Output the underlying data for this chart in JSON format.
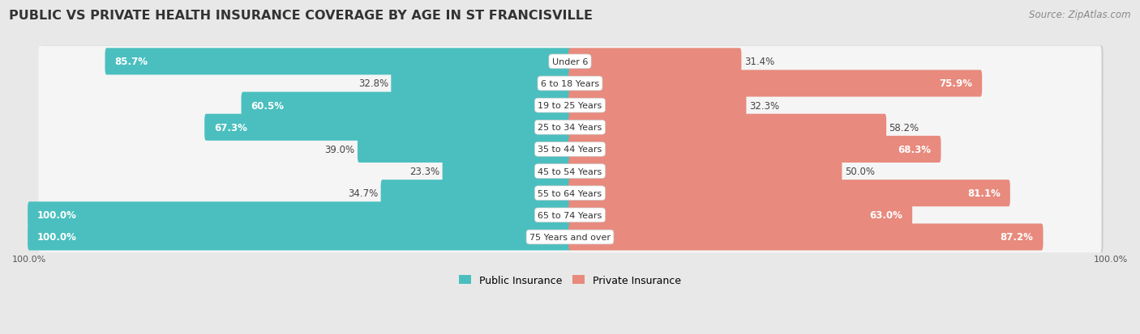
{
  "title": "PUBLIC VS PRIVATE HEALTH INSURANCE COVERAGE BY AGE IN ST FRANCISVILLE",
  "source": "Source: ZipAtlas.com",
  "categories": [
    "Under 6",
    "6 to 18 Years",
    "19 to 25 Years",
    "25 to 34 Years",
    "35 to 44 Years",
    "45 to 54 Years",
    "55 to 64 Years",
    "65 to 74 Years",
    "75 Years and over"
  ],
  "public": [
    85.7,
    32.8,
    60.5,
    67.3,
    39.0,
    23.3,
    34.7,
    100.0,
    100.0
  ],
  "private": [
    31.4,
    75.9,
    32.3,
    58.2,
    68.3,
    50.0,
    81.1,
    63.0,
    87.2
  ],
  "public_color": "#4bbfbf",
  "public_color_light": "#7dd4d4",
  "private_color": "#e88a7d",
  "private_color_light": "#f0b3aa",
  "bg_color": "#e8e8e8",
  "row_bg_color": "#f5f5f5",
  "row_shadow_color": "#cccccc",
  "max_val": 100.0,
  "title_fontsize": 11.5,
  "source_fontsize": 8.5,
  "bar_label_fontsize": 8.5,
  "category_fontsize": 8,
  "legend_fontsize": 9,
  "axis_label_fontsize": 8
}
